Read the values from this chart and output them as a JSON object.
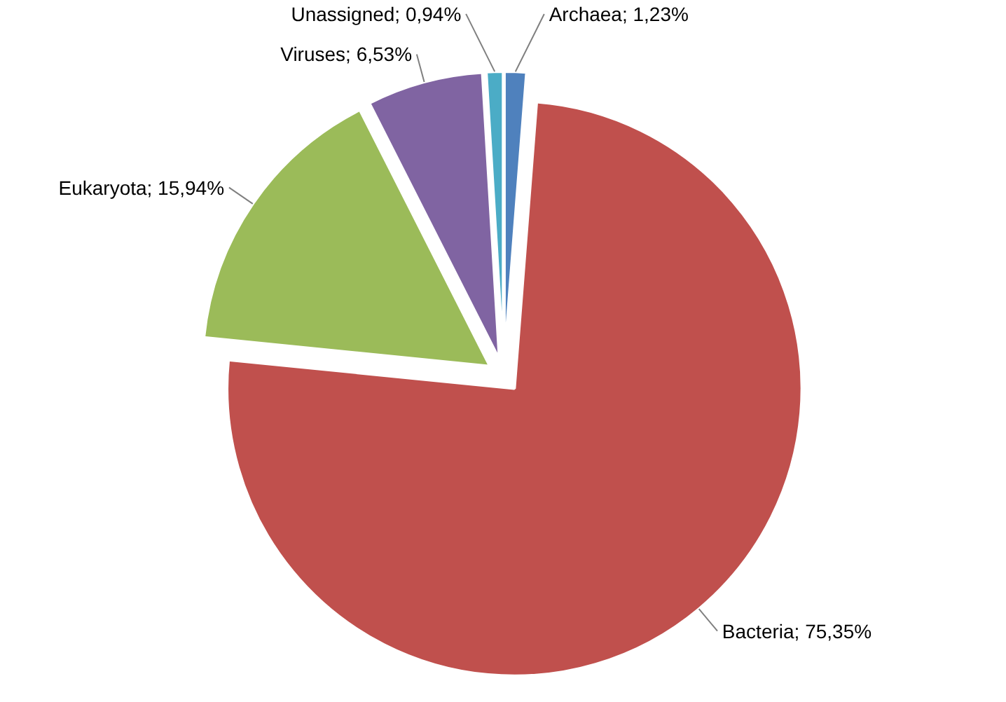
{
  "chart_data": {
    "type": "pie",
    "categories": [
      "Archaea",
      "Bacteria",
      "Eukaryota",
      "Viruses",
      "Unassigned"
    ],
    "values": [
      1.23,
      75.35,
      15.94,
      6.53,
      0.94
    ],
    "value_labels": [
      "1,23%",
      "75,35%",
      "15,94%",
      "6,53%",
      "0,94%"
    ],
    "colors": [
      "#4f81bd",
      "#c0504d",
      "#9bbb59",
      "#8064a2",
      "#4bacc6"
    ]
  }
}
